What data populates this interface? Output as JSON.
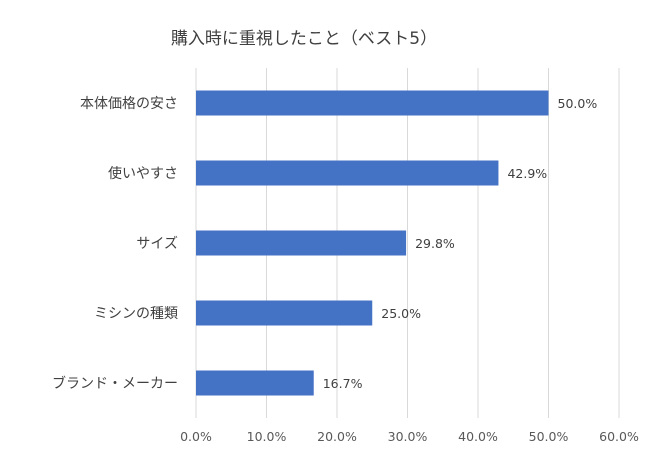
{
  "chart_data": {
    "type": "bar",
    "orientation": "horizontal",
    "title": "購入時に重視したこと（ベスト5）",
    "categories": [
      "本体価格の安さ",
      "使いやすさ",
      "サイズ",
      "ミシンの種類",
      "ブランド・メーカー"
    ],
    "values": [
      50.0,
      42.9,
      29.8,
      25.0,
      16.7
    ],
    "data_labels": [
      "50.0%",
      "42.9%",
      "29.8%",
      "25.0%",
      "16.7%"
    ],
    "xlim": [
      0,
      60
    ],
    "x_ticks": [
      0,
      10,
      20,
      30,
      40,
      50,
      60
    ],
    "x_tick_labels": [
      "0.0%",
      "10.0%",
      "20.0%",
      "30.0%",
      "40.0%",
      "50.0%",
      "60.0%"
    ],
    "grid": true,
    "legend": "none",
    "bar_color": "#4472c4"
  }
}
